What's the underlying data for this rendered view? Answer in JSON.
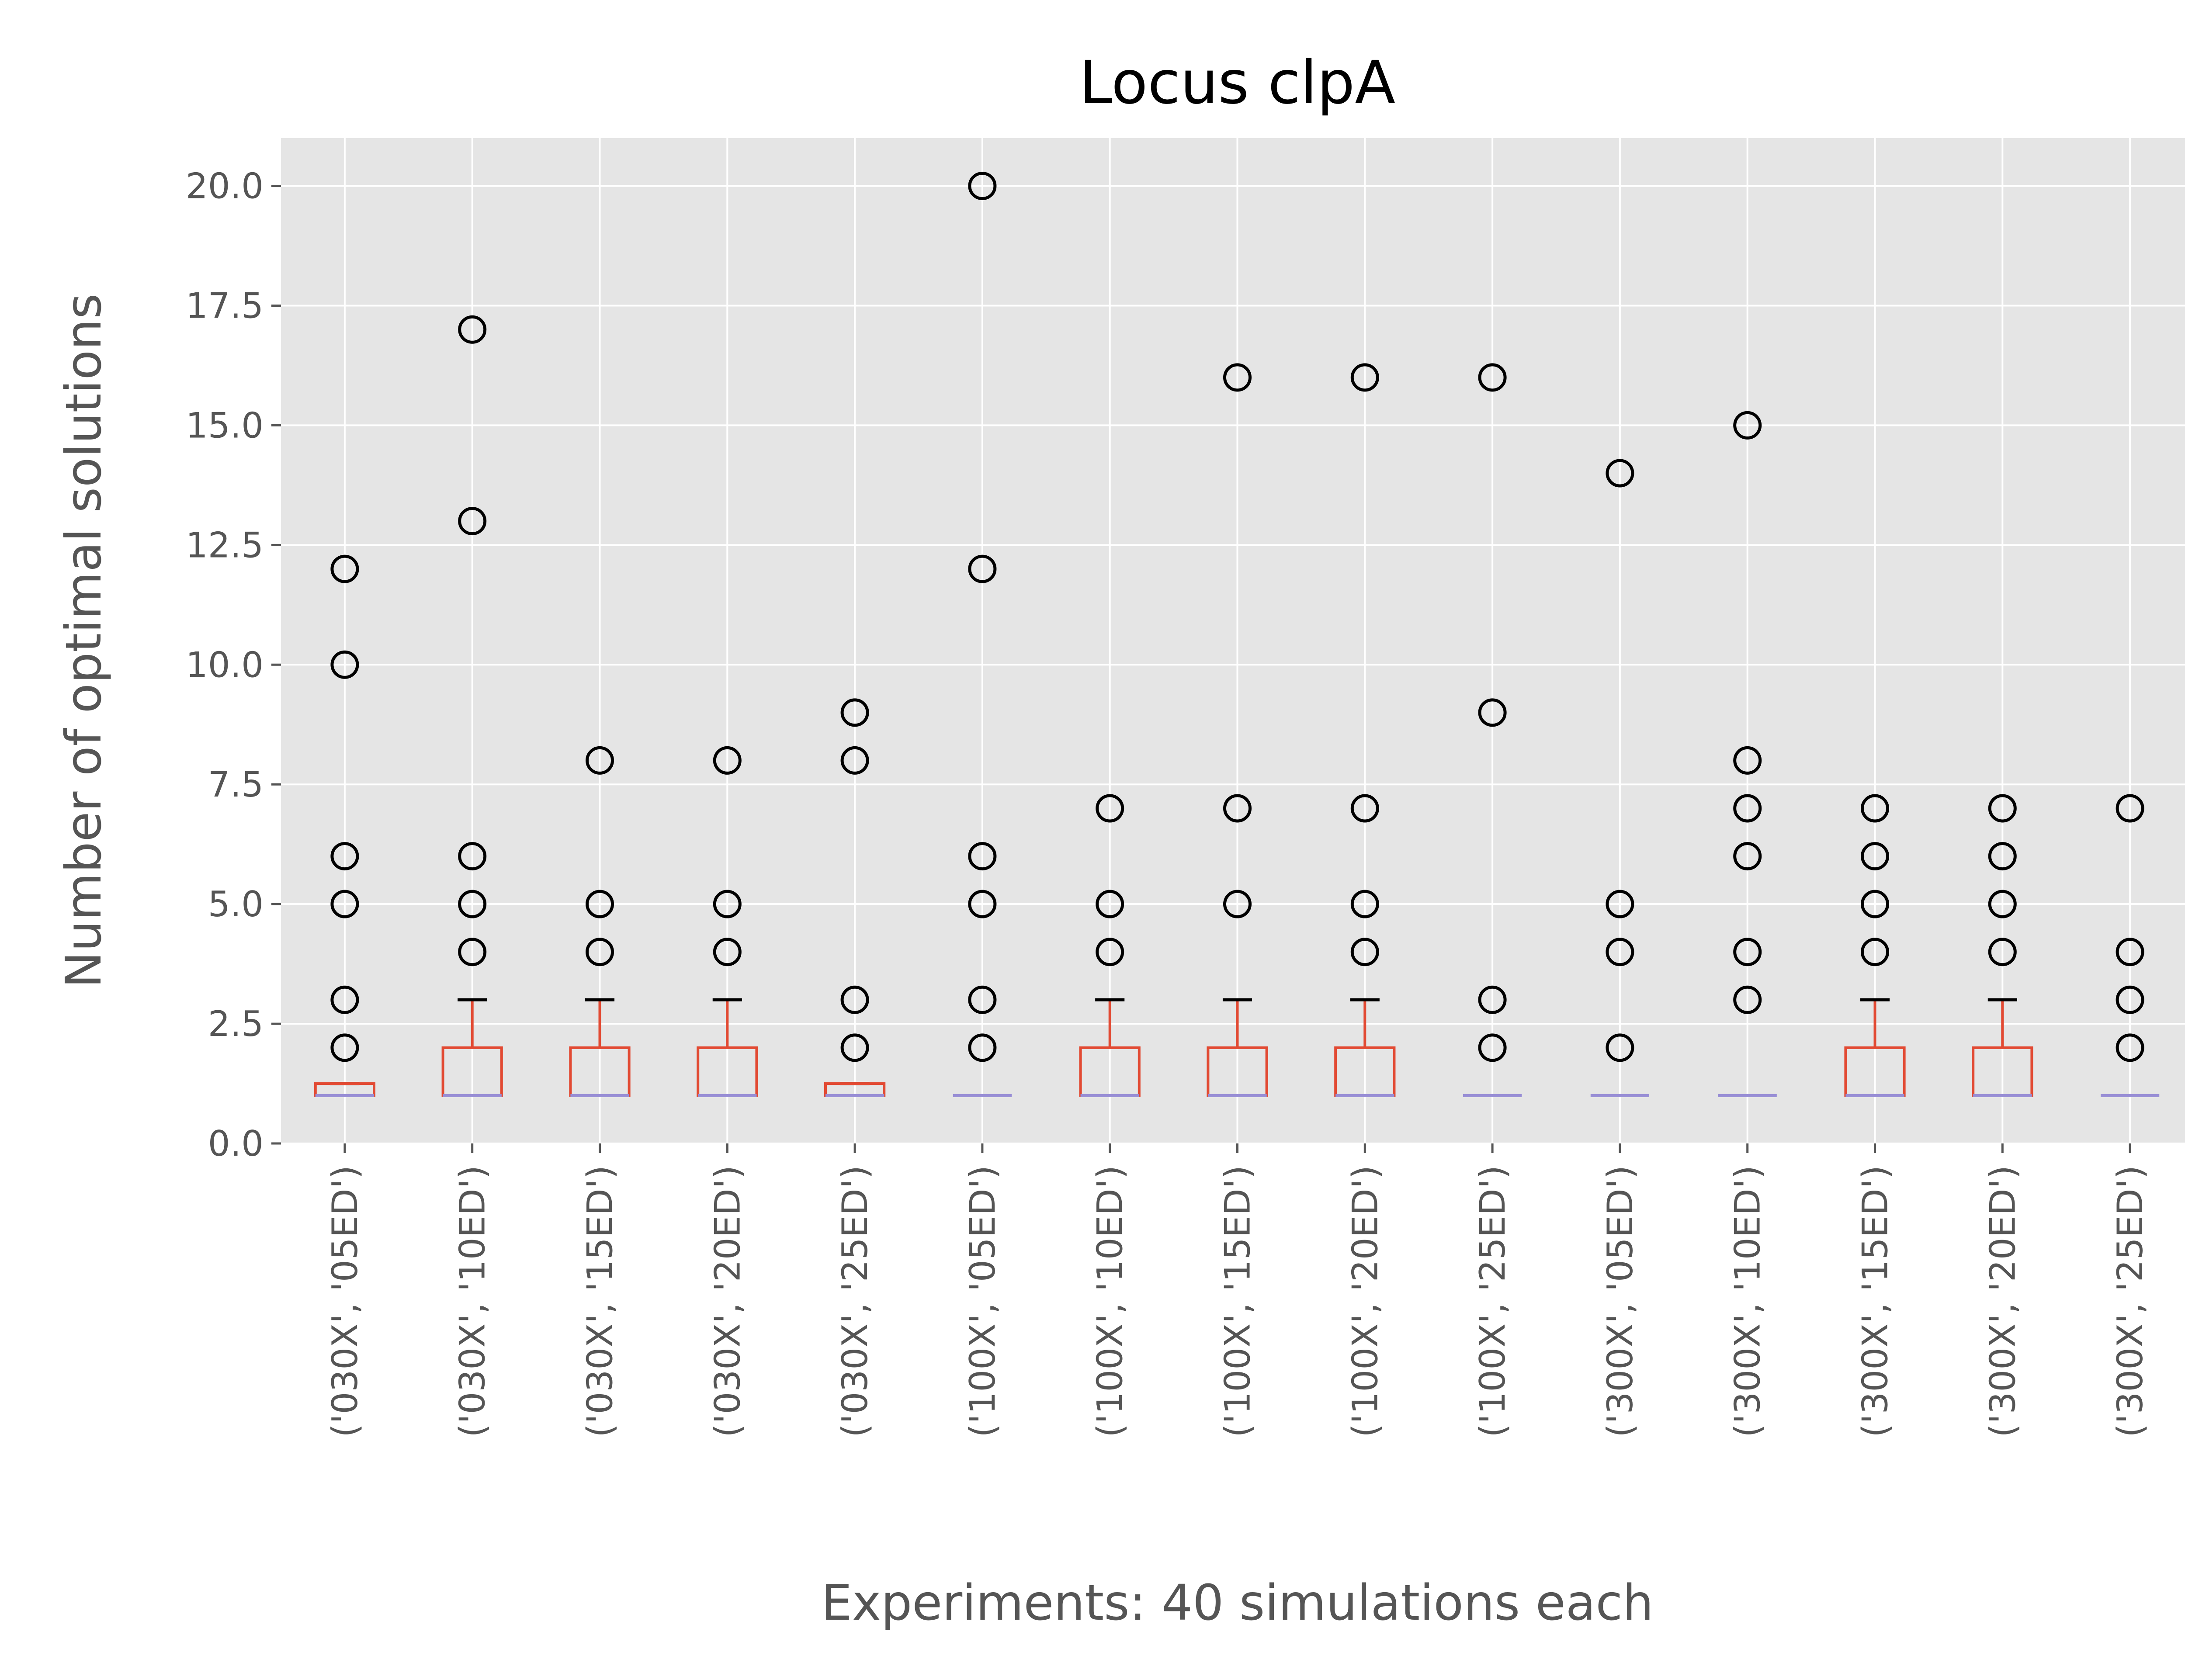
{
  "chart_data": {
    "type": "box",
    "title": "Locus clpA",
    "xlabel": "Experiments: 40 simulations each",
    "ylabel": "Number of optimal solutions",
    "ylim": [
      0,
      21
    ],
    "yticks": [
      0,
      2.5,
      5,
      7.5,
      10,
      12.5,
      15,
      17.5,
      20
    ],
    "ytick_labels": [
      "0.0",
      "2.5",
      "5.0",
      "7.5",
      "10.0",
      "12.5",
      "15.0",
      "17.5",
      "20.0"
    ],
    "grid": true,
    "colors": {
      "background": "#E5E5E5",
      "grid": "#FFFFFF",
      "box": "#E24A33",
      "median": "#988ED5",
      "cap": "#000000",
      "flier": "#000000"
    },
    "categories": [
      "('030X', '05ED')",
      "('030X', '10ED')",
      "('030X', '15ED')",
      "('030X', '20ED')",
      "('030X', '25ED')",
      "('100X', '05ED')",
      "('100X', '10ED')",
      "('100X', '15ED')",
      "('100X', '20ED')",
      "('100X', '25ED')",
      "('300X', '05ED')",
      "('300X', '10ED')",
      "('300X', '15ED')",
      "('300X', '20ED')",
      "('300X', '25ED')"
    ],
    "boxes": [
      {
        "q1": 1,
        "median": 1,
        "q3": 1.25,
        "whisker_low": 1,
        "whisker_high": 1.25,
        "fliers": [
          2,
          3,
          5,
          6,
          10,
          12
        ]
      },
      {
        "q1": 1,
        "median": 1,
        "q3": 2,
        "whisker_low": 1,
        "whisker_high": 3,
        "fliers": [
          4,
          5,
          6,
          13,
          17
        ]
      },
      {
        "q1": 1,
        "median": 1,
        "q3": 2,
        "whisker_low": 1,
        "whisker_high": 3,
        "fliers": [
          4,
          5,
          8
        ]
      },
      {
        "q1": 1,
        "median": 1,
        "q3": 2,
        "whisker_low": 1,
        "whisker_high": 3,
        "fliers": [
          4,
          5,
          8
        ]
      },
      {
        "q1": 1,
        "median": 1,
        "q3": 1.25,
        "whisker_low": 1,
        "whisker_high": 1.25,
        "fliers": [
          2,
          3,
          8,
          9
        ]
      },
      {
        "q1": 1,
        "median": 1,
        "q3": 1,
        "whisker_low": 1,
        "whisker_high": 1,
        "fliers": [
          2,
          3,
          5,
          6,
          12,
          20
        ]
      },
      {
        "q1": 1,
        "median": 1,
        "q3": 2,
        "whisker_low": 1,
        "whisker_high": 3,
        "fliers": [
          4,
          5,
          7
        ]
      },
      {
        "q1": 1,
        "median": 1,
        "q3": 2,
        "whisker_low": 1,
        "whisker_high": 3,
        "fliers": [
          5,
          7,
          16
        ]
      },
      {
        "q1": 1,
        "median": 1,
        "q3": 2,
        "whisker_low": 1,
        "whisker_high": 3,
        "fliers": [
          4,
          5,
          7,
          16
        ]
      },
      {
        "q1": 1,
        "median": 1,
        "q3": 1,
        "whisker_low": 1,
        "whisker_high": 1,
        "fliers": [
          2,
          3,
          9,
          16
        ]
      },
      {
        "q1": 1,
        "median": 1,
        "q3": 1,
        "whisker_low": 1,
        "whisker_high": 1,
        "fliers": [
          2,
          4,
          5,
          14
        ]
      },
      {
        "q1": 1,
        "median": 1,
        "q3": 1,
        "whisker_low": 1,
        "whisker_high": 1,
        "fliers": [
          3,
          4,
          6,
          7,
          8,
          15
        ]
      },
      {
        "q1": 1,
        "median": 1,
        "q3": 2,
        "whisker_low": 1,
        "whisker_high": 3,
        "fliers": [
          4,
          5,
          6,
          7
        ]
      },
      {
        "q1": 1,
        "median": 1,
        "q3": 2,
        "whisker_low": 1,
        "whisker_high": 3,
        "fliers": [
          4,
          5,
          6,
          7
        ]
      },
      {
        "q1": 1,
        "median": 1,
        "q3": 1,
        "whisker_low": 1,
        "whisker_high": 1,
        "fliers": [
          2,
          3,
          4,
          7
        ]
      }
    ]
  }
}
